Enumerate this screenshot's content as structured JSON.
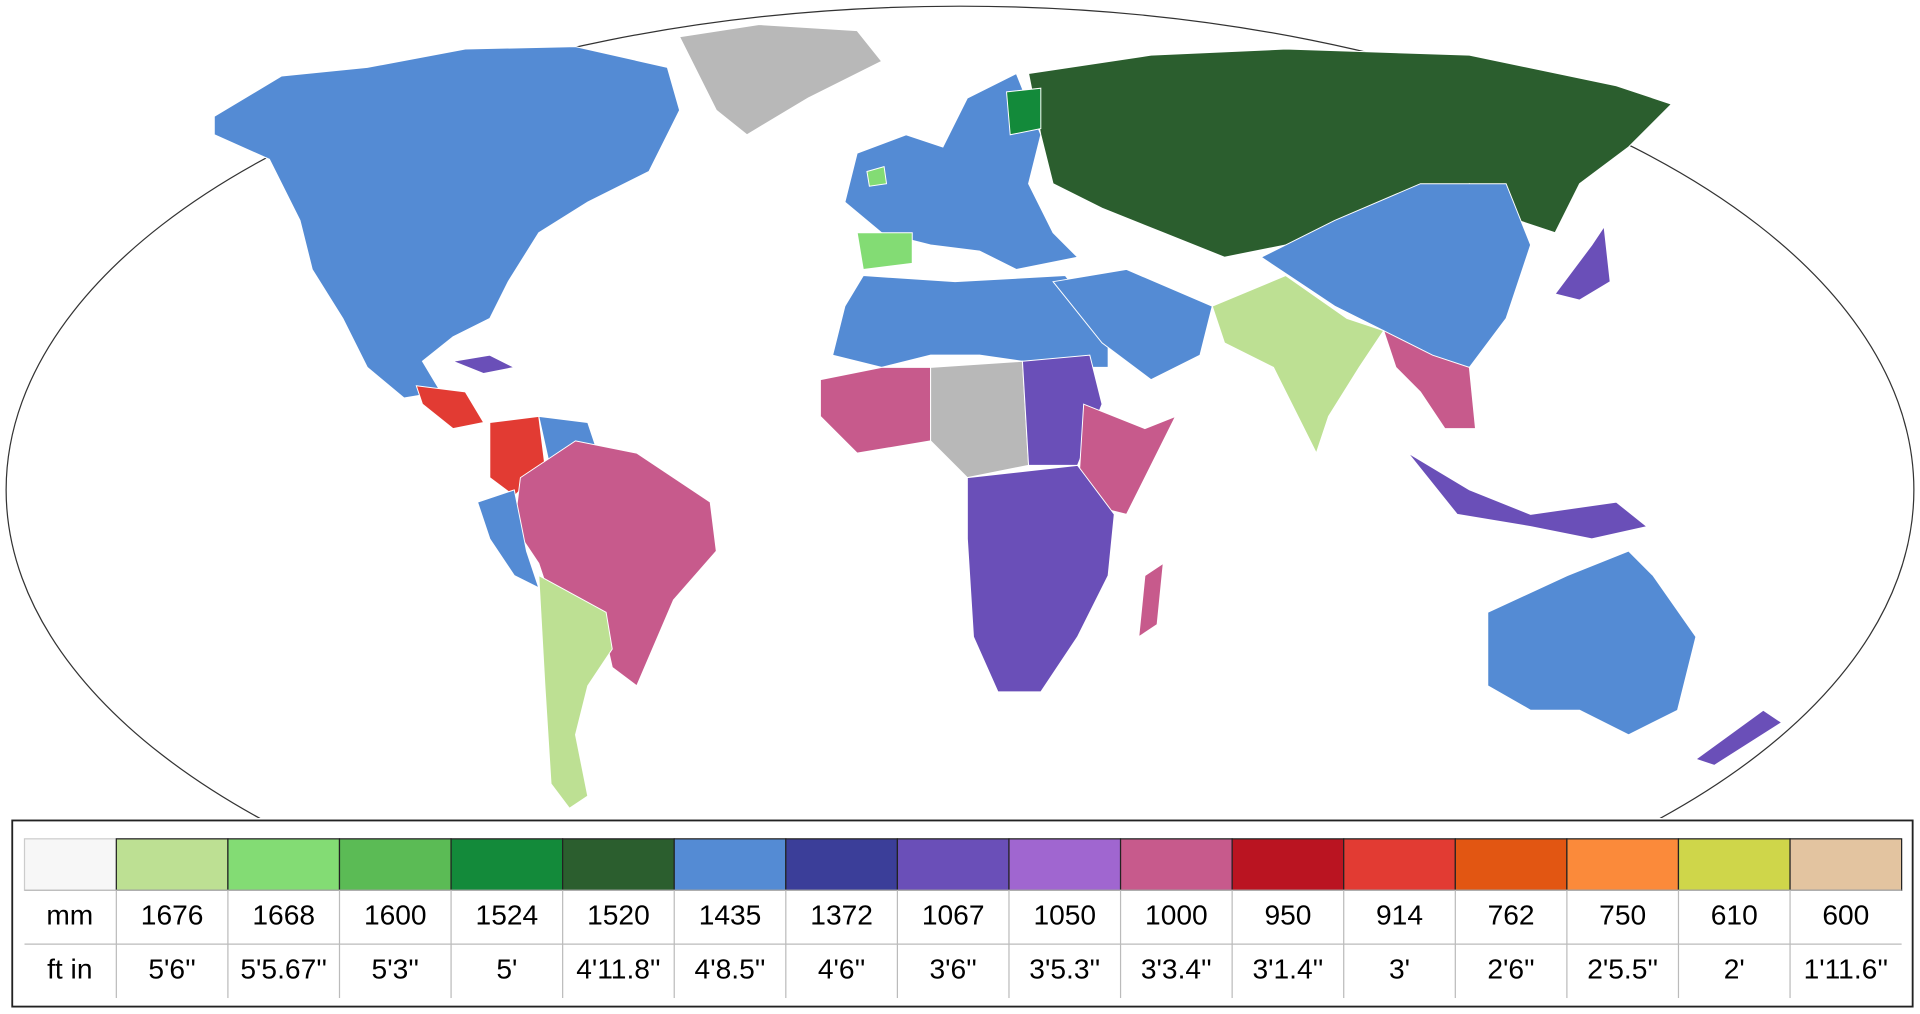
{
  "legend": {
    "row_labels": [
      "mm",
      "ft in"
    ],
    "gauges": [
      {
        "color": "#bde093",
        "mm": 1676,
        "ft_in": "5'6''"
      },
      {
        "color": "#83dc74",
        "mm": 1668,
        "ft_in": "5'5.67''"
      },
      {
        "color": "#5bbb55",
        "mm": 1600,
        "ft_in": "5'3''"
      },
      {
        "color": "#138a3a",
        "mm": 1524,
        "ft_in": "5'"
      },
      {
        "color": "#2b5e2e",
        "mm": 1520,
        "ft_in": "4'11.8''"
      },
      {
        "color": "#548bd4",
        "mm": 1435,
        "ft_in": "4'8.5''"
      },
      {
        "color": "#3b3e99",
        "mm": 1372,
        "ft_in": "4'6''"
      },
      {
        "color": "#6a4fb8",
        "mm": 1067,
        "ft_in": "3'6''"
      },
      {
        "color": "#a066d0",
        "mm": 1050,
        "ft_in": "3'5.3''"
      },
      {
        "color": "#c75a8c",
        "mm": 1000,
        "ft_in": "3'3.4''"
      },
      {
        "color": "#ba1421",
        "mm": 950,
        "ft_in": "3'1.4''"
      },
      {
        "color": "#e23b33",
        "mm": 914,
        "ft_in": "3'"
      },
      {
        "color": "#e25612",
        "mm": 762,
        "ft_in": "2'6''"
      },
      {
        "color": "#fb8a3a",
        "mm": 750,
        "ft_in": "2'5.5''"
      },
      {
        "color": "#cfd64a",
        "mm": 610,
        "ft_in": "2'"
      },
      {
        "color": "#e3c4a0",
        "mm": 600,
        "ft_in": "1'11.6''"
      }
    ]
  }
}
